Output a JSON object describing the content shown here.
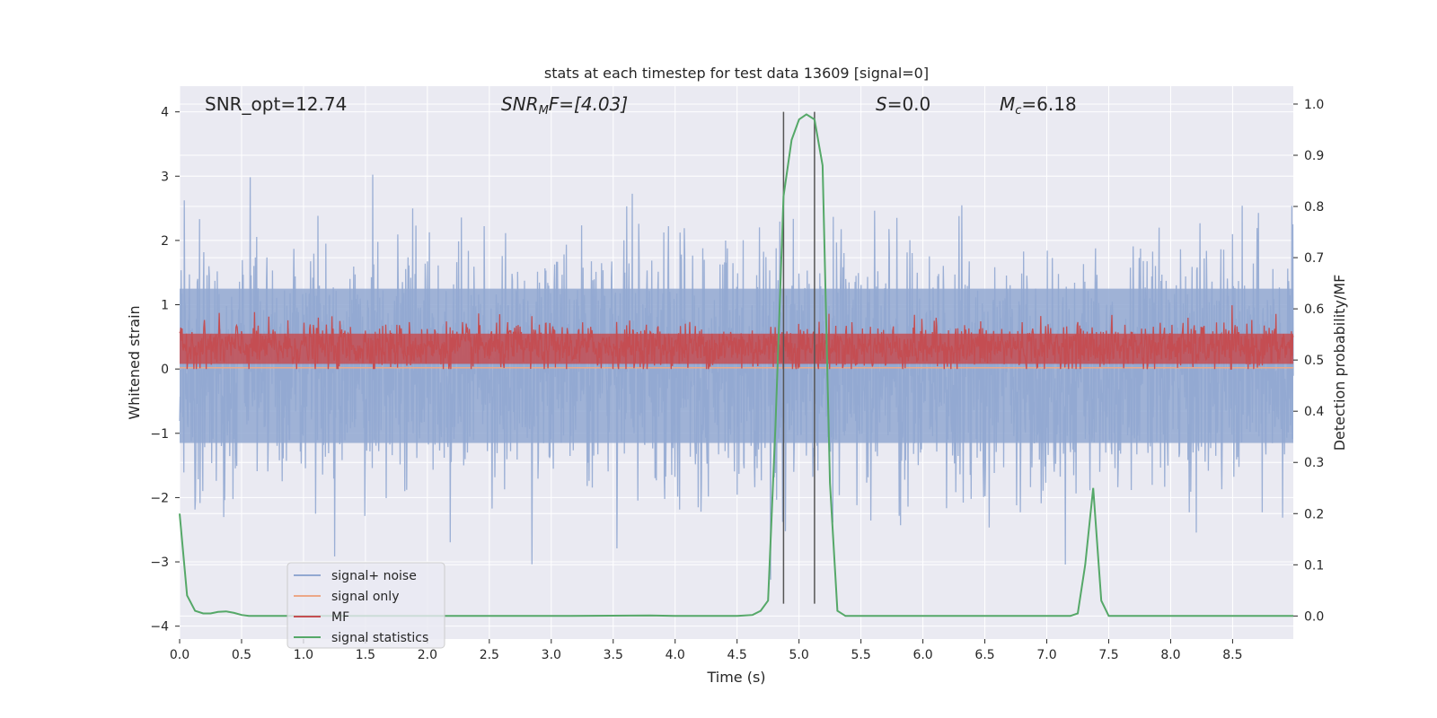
{
  "chart_data": {
    "type": "line",
    "title": "stats at each timestep for test data 13609 [signal=0]",
    "xlabel": "Time (s)",
    "ylabel_left": "Whitened strain",
    "ylabel_right": "Detection probability/MF",
    "xlim": [
      0.0,
      8.99
    ],
    "ylim_left": [
      -4.2,
      4.4
    ],
    "ylim_right": [
      -0.045,
      1.035
    ],
    "xticks": [
      0.0,
      0.5,
      1.0,
      1.5,
      2.0,
      2.5,
      3.0,
      3.5,
      4.0,
      4.5,
      5.0,
      5.5,
      6.0,
      6.5,
      7.0,
      7.5,
      8.0,
      8.5
    ],
    "xtick_labels": [
      "0.0",
      "0.5",
      "1.0",
      "1.5",
      "2.0",
      "2.5",
      "3.0",
      "3.5",
      "4.0",
      "4.5",
      "5.0",
      "5.5",
      "6.0",
      "6.5",
      "7.0",
      "7.5",
      "8.0",
      "8.5"
    ],
    "yticks_left": [
      4,
      3,
      2,
      1,
      0,
      -1,
      -2,
      -3,
      -4
    ],
    "ytick_labels_left": [
      "4",
      "3",
      "2",
      "1",
      "0",
      "−1",
      "−2",
      "−3",
      "−4"
    ],
    "yticks_right": [
      1.0,
      0.9,
      0.8,
      0.7,
      0.6,
      0.5,
      0.4,
      0.3,
      0.2,
      0.1,
      0.0
    ],
    "ytick_labels_right": [
      "1.0",
      "0.9",
      "0.8",
      "0.7",
      "0.6",
      "0.5",
      "0.4",
      "0.3",
      "0.2",
      "0.1",
      "0.0"
    ],
    "annotations": {
      "snr_opt": "SNR_opt=12.74",
      "snr_mf_base": "SNR",
      "snr_mf_sub": "M",
      "snr_mf_rest": "F=[4.03]",
      "s_base": "S",
      "s_rest": "=0.0",
      "mc_base": "M",
      "mc_sub": "c",
      "mc_rest": "=6.18"
    },
    "vertical_lines_x": [
      4.875,
      5.125
    ],
    "vertical_lines_range_left": [
      -3.65,
      4.0
    ],
    "legend": {
      "location": "lower-left",
      "entries": [
        {
          "label": "signal+ noise",
          "color": "#92a8d1"
        },
        {
          "label": "signal only",
          "color": "#eca787"
        },
        {
          "label": "MF",
          "color": "#c44e52"
        },
        {
          "label": "signal statistics",
          "color": "#55a868"
        }
      ]
    },
    "series": [
      {
        "name": "signal+ noise",
        "axis": "left",
        "style": "dense noise band",
        "sample_rate_hz": 2048,
        "typical_range": [
          -1.6,
          1.7
        ],
        "peak_range": [
          -3.65,
          4.0
        ],
        "color": "#92a8d1"
      },
      {
        "name": "signal only",
        "axis": "left",
        "x": [
          0.0,
          8.99
        ],
        "y": [
          0.02,
          0.02
        ],
        "color": "#eca787"
      },
      {
        "name": "MF",
        "axis": "left",
        "style": "dense band",
        "typical_range": [
          0.0,
          0.75
        ],
        "peak": 1.0,
        "color": "#c44e52"
      },
      {
        "name": "signal statistics",
        "axis": "right",
        "x": [
          0.0,
          0.06,
          0.125,
          0.19,
          0.25,
          0.31,
          0.375,
          0.44,
          0.5,
          0.56,
          0.625,
          1.0,
          2.0,
          3.0,
          3.8,
          4.0,
          4.5,
          4.625,
          4.69,
          4.75,
          4.81,
          4.875,
          4.94,
          5.0,
          5.06,
          5.125,
          5.19,
          5.25,
          5.31,
          5.375,
          5.5,
          6.0,
          7.0,
          7.19,
          7.25,
          7.31,
          7.375,
          7.44,
          7.5,
          7.6,
          8.0,
          8.99
        ],
        "y": [
          0.2,
          0.04,
          0.01,
          0.005,
          0.005,
          0.008,
          0.009,
          0.006,
          0.002,
          0.0,
          0.0,
          0.0,
          0.0,
          0.0,
          0.001,
          0.0,
          0.0,
          0.002,
          0.01,
          0.03,
          0.37,
          0.82,
          0.93,
          0.97,
          0.98,
          0.97,
          0.88,
          0.26,
          0.01,
          0.0,
          0.0,
          0.0,
          0.0,
          0.0,
          0.005,
          0.1,
          0.25,
          0.03,
          0.0,
          0.0,
          0.0,
          0.0
        ],
        "color": "#55a868"
      }
    ]
  }
}
